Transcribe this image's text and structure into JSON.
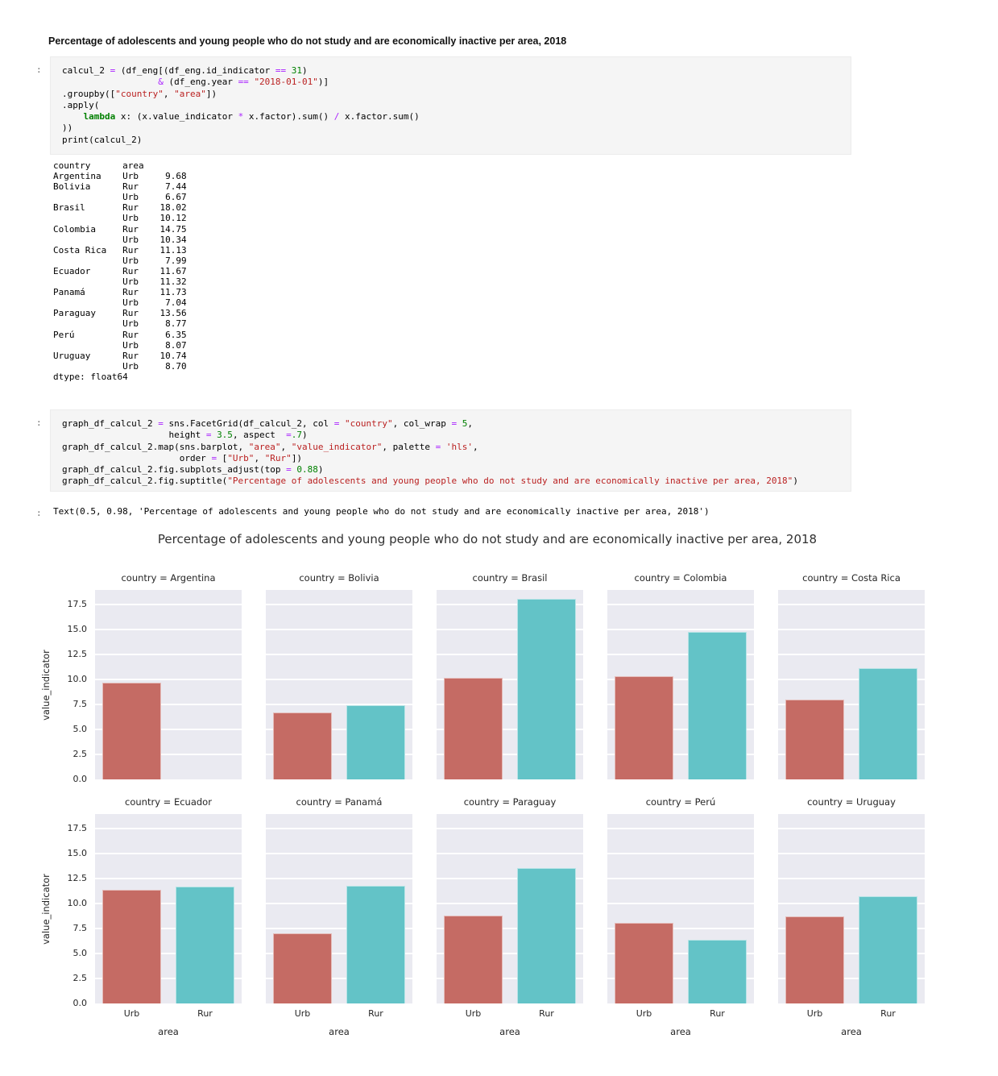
{
  "page": {
    "heading": "Percentage of adolescents and young people who do not study and are economically inactive per area, 2018"
  },
  "cell1": {
    "prompt": ":",
    "lines": [
      [
        [
          "p",
          "calcul_2 "
        ],
        [
          "o",
          "="
        ],
        [
          "p",
          " (df_eng[(df_eng.id_indicator "
        ],
        [
          "o",
          "=="
        ],
        [
          "p",
          " "
        ],
        [
          "n",
          "31"
        ],
        [
          "p",
          ")"
        ]
      ],
      [
        [
          "p",
          "                  "
        ],
        [
          "o",
          "&"
        ],
        [
          "p",
          " (df_eng.year "
        ],
        [
          "o",
          "=="
        ],
        [
          "p",
          " "
        ],
        [
          "s",
          "\"2018-01-01\""
        ],
        [
          "p",
          ")]"
        ]
      ],
      [
        [
          "p",
          ".groupby(["
        ],
        [
          "s",
          "\"country\""
        ],
        [
          "p",
          ", "
        ],
        [
          "s",
          "\"area\""
        ],
        [
          "p",
          "])"
        ]
      ],
      [
        [
          "p",
          ".apply("
        ]
      ],
      [
        [
          "p",
          "    "
        ],
        [
          "k",
          "lambda"
        ],
        [
          "p",
          " x: (x.value_indicator "
        ],
        [
          "o",
          "*"
        ],
        [
          "p",
          " x.factor).sum() "
        ],
        [
          "o",
          "/"
        ],
        [
          "p",
          " x.factor.sum()"
        ]
      ],
      [
        [
          "p",
          "))"
        ]
      ],
      [
        [
          "p",
          "print(calcul_2)"
        ]
      ]
    ],
    "output_lines": [
      "country      area",
      "Argentina    Urb     9.68",
      "Bolivia      Rur     7.44",
      "             Urb     6.67",
      "Brasil       Rur    18.02",
      "             Urb    10.12",
      "Colombia     Rur    14.75",
      "             Urb    10.34",
      "Costa Rica   Rur    11.13",
      "             Urb     7.99",
      "Ecuador      Rur    11.67",
      "             Urb    11.32",
      "Panamá       Rur    11.73",
      "             Urb     7.04",
      "Paraguay     Rur    13.56",
      "             Urb     8.77",
      "Perú         Rur     6.35",
      "             Urb     8.07",
      "Uruguay      Rur    10.74",
      "             Urb     8.70",
      "dtype: float64"
    ]
  },
  "cell2": {
    "prompt": ":",
    "lines": [
      [
        [
          "p",
          "graph_df_calcul_2 "
        ],
        [
          "o",
          "="
        ],
        [
          "p",
          " sns.FacetGrid(df_calcul_2, col "
        ],
        [
          "o",
          "="
        ],
        [
          "p",
          " "
        ],
        [
          "s",
          "\"country\""
        ],
        [
          "p",
          ", col_wrap "
        ],
        [
          "o",
          "="
        ],
        [
          "p",
          " "
        ],
        [
          "n",
          "5"
        ],
        [
          "p",
          ","
        ]
      ],
      [
        [
          "p",
          "                    height "
        ],
        [
          "o",
          "="
        ],
        [
          "p",
          " "
        ],
        [
          "n",
          "3.5"
        ],
        [
          "p",
          ", aspect  "
        ],
        [
          "o",
          "="
        ],
        [
          "n",
          ".7"
        ],
        [
          "p",
          ")"
        ]
      ],
      [
        [
          "p",
          "graph_df_calcul_2.map(sns.barplot, "
        ],
        [
          "s",
          "\"area\""
        ],
        [
          "p",
          ", "
        ],
        [
          "s",
          "\"value_indicator\""
        ],
        [
          "p",
          ", palette "
        ],
        [
          "o",
          "="
        ],
        [
          "p",
          " "
        ],
        [
          "s",
          "'hls'"
        ],
        [
          "p",
          ","
        ]
      ],
      [
        [
          "p",
          "                      order "
        ],
        [
          "o",
          "="
        ],
        [
          "p",
          " ["
        ],
        [
          "s",
          "\"Urb\""
        ],
        [
          "p",
          ", "
        ],
        [
          "s",
          "\"Rur\""
        ],
        [
          "p",
          "])"
        ]
      ],
      [
        [
          "p",
          "graph_df_calcul_2.fig.subplots_adjust(top "
        ],
        [
          "o",
          "="
        ],
        [
          "p",
          " "
        ],
        [
          "n",
          "0.88"
        ],
        [
          "p",
          ")"
        ]
      ],
      [
        [
          "p",
          "graph_df_calcul_2.fig.suptitle("
        ],
        [
          "s",
          "\"Percentage of adolescents and young people who do not study and are economically inactive per area, 2018\""
        ],
        [
          "p",
          ")"
        ]
      ]
    ],
    "output_prompt": ":",
    "output_text": "Text(0.5, 0.98, 'Percentage of adolescents and young people who do not study and are economically inactive per area, 2018')"
  },
  "chart_data": {
    "type": "bar",
    "title": "Percentage of adolescents and young people who do not study and are economically inactive per area, 2018",
    "facet_by": "country",
    "col_wrap": 5,
    "categories": [
      "Urb",
      "Rur"
    ],
    "xlabel": "area",
    "ylabel": "value_indicator",
    "ylim": [
      0,
      18.92
    ],
    "yticks": [
      0.0,
      2.5,
      5.0,
      7.5,
      10.0,
      12.5,
      15.0,
      17.5
    ],
    "grid": true,
    "bar_colors": {
      "Urb": "#c56b64",
      "Rur": "#63c3c7"
    },
    "plot_bg": "#eaeaf1",
    "facets": [
      {
        "country": "Argentina",
        "values": {
          "Urb": 9.68,
          "Rur": null
        }
      },
      {
        "country": "Bolivia",
        "values": {
          "Urb": 6.67,
          "Rur": 7.44
        }
      },
      {
        "country": "Brasil",
        "values": {
          "Urb": 10.12,
          "Rur": 18.02
        }
      },
      {
        "country": "Colombia",
        "values": {
          "Urb": 10.34,
          "Rur": 14.75
        }
      },
      {
        "country": "Costa Rica",
        "values": {
          "Urb": 7.99,
          "Rur": 11.13
        }
      },
      {
        "country": "Ecuador",
        "values": {
          "Urb": 11.32,
          "Rur": 11.67
        }
      },
      {
        "country": "Panamá",
        "values": {
          "Urb": 7.04,
          "Rur": 11.73
        }
      },
      {
        "country": "Paraguay",
        "values": {
          "Urb": 8.77,
          "Rur": 13.56
        }
      },
      {
        "country": "Perú",
        "values": {
          "Urb": 8.07,
          "Rur": 6.35
        }
      },
      {
        "country": "Uruguay",
        "values": {
          "Urb": 8.7,
          "Rur": 10.74
        }
      }
    ]
  }
}
